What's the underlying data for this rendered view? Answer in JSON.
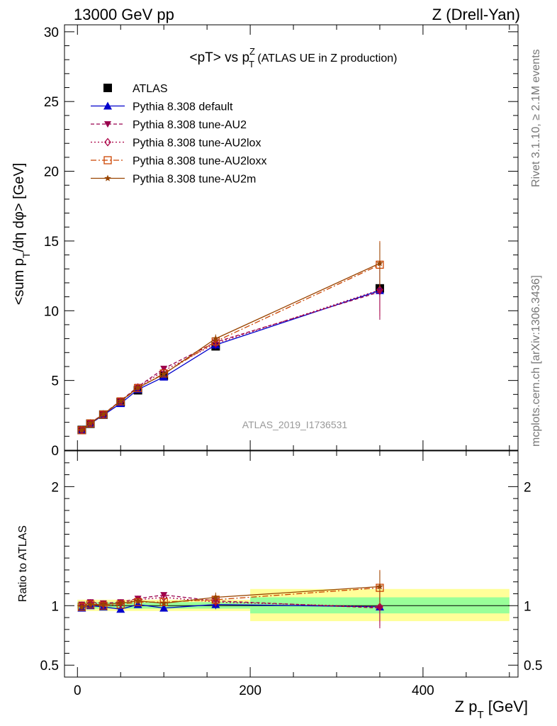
{
  "header": {
    "left": "13000 GeV pp",
    "right": "Z (Drell-Yan)"
  },
  "side_labels": {
    "rivet": "Rivet 3.1.10, ≥ 2.1M events",
    "mcplots": "mcplots.cern.ch [arXiv:1306.3436]"
  },
  "chart_data": [
    {
      "type": "line",
      "title_main": "<pT> vs p",
      "title_sup": "Z",
      "title_sub": "T",
      "title_suffix": " (ATLAS UE in Z production)",
      "ylabel_parts": [
        "<sum p",
        "T",
        "/dη dφ> [GeV]"
      ],
      "watermark": "ATLAS_2019_I1736531",
      "xlim": [
        -15,
        510
      ],
      "ylim": [
        0,
        30.5
      ],
      "y_ticks": [
        0,
        5,
        10,
        15,
        20,
        25,
        30
      ],
      "y_tick_labels": [
        "0",
        "5",
        "10",
        "15",
        "20",
        "25",
        "30"
      ],
      "legend_position": "top-left",
      "x": [
        5,
        15,
        30,
        50,
        70,
        100,
        160,
        350
      ],
      "series": [
        {
          "name": "ATLAS",
          "color": "#000000",
          "marker": "square",
          "dash": "",
          "values": [
            1.45,
            1.9,
            2.55,
            3.45,
            4.3,
            5.35,
            7.45,
            11.6
          ],
          "err": [
            0.05,
            0.05,
            0.07,
            0.1,
            0.12,
            0.15,
            0.25,
            0.6
          ]
        },
        {
          "name": "Pythia 8.308 default",
          "color": "#0000cc",
          "marker": "triangle-up",
          "dash": "",
          "values": [
            1.42,
            1.9,
            2.52,
            3.35,
            4.35,
            5.25,
            7.55,
            11.45
          ],
          "err": [
            0.03,
            0.03,
            0.05,
            0.07,
            0.1,
            0.12,
            0.3,
            1.5
          ]
        },
        {
          "name": "Pythia 8.308 tune-AU2",
          "color": "#99004d",
          "marker": "triangle-down",
          "dash": "5,3",
          "values": [
            1.46,
            1.95,
            2.6,
            3.55,
            4.55,
            5.85,
            7.75,
            11.35
          ],
          "err": [
            0.03,
            0.03,
            0.05,
            0.07,
            0.1,
            0.12,
            0.3,
            2.0
          ]
        },
        {
          "name": "Pythia 8.308 tune-AU2lox",
          "color": "#aa0044",
          "marker": "diamond",
          "dash": "2,3",
          "values": [
            1.45,
            1.93,
            2.58,
            3.5,
            4.5,
            5.7,
            7.65,
            11.5
          ],
          "err": [
            0.03,
            0.03,
            0.05,
            0.07,
            0.1,
            0.12,
            0.3,
            1.9
          ]
        },
        {
          "name": "Pythia 8.308 tune-AU2loxx",
          "color": "#cc4400",
          "marker": "square-open",
          "dash": "8,3,2,3",
          "values": [
            1.43,
            1.92,
            2.56,
            3.5,
            4.45,
            5.5,
            7.8,
            13.3
          ],
          "err": [
            0.03,
            0.03,
            0.05,
            0.07,
            0.1,
            0.12,
            0.3,
            1.7
          ]
        },
        {
          "name": "Pythia 8.308 tune-AU2m",
          "color": "#994400",
          "marker": "star",
          "dash": "",
          "values": [
            1.44,
            1.93,
            2.58,
            3.52,
            4.48,
            5.45,
            8.0,
            13.4
          ],
          "err": [
            0.03,
            0.03,
            0.05,
            0.07,
            0.1,
            0.12,
            0.3,
            1.5
          ]
        }
      ]
    },
    {
      "type": "line",
      "ylabel": "Ratio to ATLAS",
      "xlabel_parts": [
        "Z p",
        "T",
        " [GeV]"
      ],
      "xlim": [
        -15,
        510
      ],
      "ylim": [
        0.4,
        2.3
      ],
      "y_ticks": [
        0.5,
        1,
        2
      ],
      "y_tick_labels": [
        "0.5",
        "1",
        "2"
      ],
      "x_ticks": [
        0,
        200,
        400
      ],
      "x_tick_labels": [
        "0",
        "200",
        "400"
      ],
      "bands": [
        {
          "x0": 0,
          "x1": 200,
          "green": [
            0.975,
            1.03
          ],
          "yellow": [
            0.955,
            1.05
          ]
        },
        {
          "x0": 200,
          "x1": 500,
          "green": [
            0.935,
            1.07
          ],
          "yellow": [
            0.87,
            1.14
          ]
        }
      ],
      "x": [
        5,
        15,
        30,
        50,
        70,
        100,
        160,
        350
      ],
      "series": [
        {
          "name": "Pythia 8.308 default",
          "values": [
            0.98,
            1.0,
            0.99,
            0.97,
            1.01,
            0.98,
            1.01,
            0.99
          ],
          "err": [
            0.02,
            0.02,
            0.02,
            0.02,
            0.02,
            0.02,
            0.04,
            0.13
          ]
        },
        {
          "name": "Pythia 8.308 tune-AU2",
          "values": [
            1.01,
            1.03,
            1.02,
            1.03,
            1.06,
            1.09,
            1.04,
            0.98
          ],
          "err": [
            0.02,
            0.02,
            0.02,
            0.02,
            0.02,
            0.02,
            0.04,
            0.17
          ]
        },
        {
          "name": "Pythia 8.308 tune-AU2lox",
          "values": [
            1.0,
            1.02,
            1.01,
            1.02,
            1.05,
            1.07,
            1.03,
            0.99
          ],
          "err": [
            0.02,
            0.02,
            0.02,
            0.02,
            0.02,
            0.02,
            0.04,
            0.16
          ]
        },
        {
          "name": "Pythia 8.308 tune-AU2loxx",
          "values": [
            0.99,
            1.01,
            1.0,
            1.01,
            1.03,
            1.03,
            1.05,
            1.15
          ],
          "err": [
            0.02,
            0.02,
            0.02,
            0.02,
            0.02,
            0.02,
            0.04,
            0.15
          ]
        },
        {
          "name": "Pythia 8.308 tune-AU2m",
          "values": [
            0.99,
            1.01,
            1.01,
            1.02,
            1.04,
            1.02,
            1.07,
            1.16
          ],
          "err": [
            0.02,
            0.02,
            0.02,
            0.02,
            0.02,
            0.02,
            0.04,
            0.13
          ]
        }
      ]
    }
  ]
}
